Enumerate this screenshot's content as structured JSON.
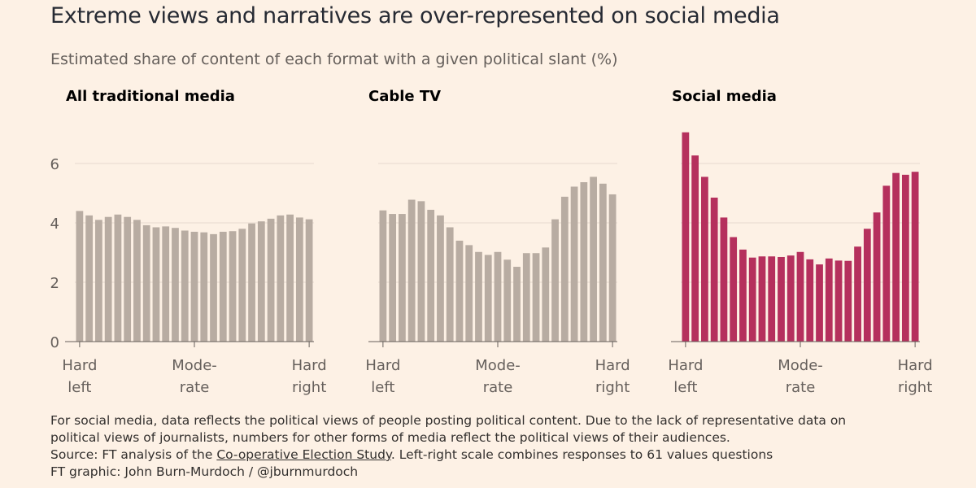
{
  "title": "Extreme views and narratives are over-represented on social media",
  "subtitle": "Estimated share of content of each format with a given political slant (%)",
  "footer": {
    "note_line1": "For social media, data reflects the political views of people posting political content. Due to the lack of representative data on",
    "note_line2": "political views of journalists, numbers for other forms of media reflect the political views of their audiences.",
    "source_prefix": "Source: FT analysis of the ",
    "source_link": "Co-operative Election Study",
    "source_suffix": ". Left-right scale combines responses to 61 values questions",
    "credit": "FT graphic: John Burn-Murdoch / @jburnmurdoch"
  },
  "colors": {
    "traditional": "#b8aca2",
    "cable": "#b8aca2",
    "social": "#b5305d",
    "grid": "#e6d9ce",
    "background": "#fdf1e5"
  },
  "chart_data": [
    {
      "type": "bar",
      "title": "All traditional media",
      "ylim": [
        0,
        7
      ],
      "yticks": [
        0,
        2,
        4,
        6
      ],
      "x_tick_labels": [
        [
          "Hard",
          "left"
        ],
        [
          "Mode-",
          "rate"
        ],
        [
          "Hard",
          "right"
        ]
      ],
      "grid": true,
      "values": [
        4.4,
        4.25,
        4.1,
        4.2,
        4.28,
        4.2,
        4.1,
        3.92,
        3.85,
        3.88,
        3.83,
        3.74,
        3.7,
        3.68,
        3.62,
        3.7,
        3.72,
        3.8,
        3.98,
        4.05,
        4.14,
        4.25,
        4.28,
        4.18,
        4.12
      ]
    },
    {
      "type": "bar",
      "title": "Cable TV",
      "ylim": [
        0,
        7
      ],
      "yticks": [
        0,
        2,
        4,
        6
      ],
      "x_tick_labels": [
        [
          "Hard",
          "left"
        ],
        [
          "Mode-",
          "rate"
        ],
        [
          "Hard",
          "right"
        ]
      ],
      "grid": true,
      "values": [
        4.42,
        4.3,
        4.3,
        4.78,
        4.73,
        4.44,
        4.25,
        3.85,
        3.4,
        3.25,
        3.02,
        2.92,
        3.02,
        2.76,
        2.52,
        2.98,
        2.98,
        3.17,
        4.12,
        4.88,
        5.22,
        5.37,
        5.55,
        5.32,
        4.96
      ]
    },
    {
      "type": "bar",
      "title": "Social media",
      "ylim": [
        0,
        7
      ],
      "yticks": [
        0,
        2,
        4,
        6
      ],
      "x_tick_labels": [
        [
          "Hard",
          "left"
        ],
        [
          "Mode-",
          "rate"
        ],
        [
          "Hard",
          "right"
        ]
      ],
      "grid": true,
      "values": [
        7.05,
        6.27,
        5.55,
        4.85,
        4.18,
        3.52,
        3.1,
        2.83,
        2.87,
        2.87,
        2.85,
        2.9,
        3.02,
        2.77,
        2.6,
        2.8,
        2.73,
        2.72,
        3.2,
        3.8,
        4.35,
        5.25,
        5.68,
        5.62,
        5.72
      ]
    }
  ]
}
